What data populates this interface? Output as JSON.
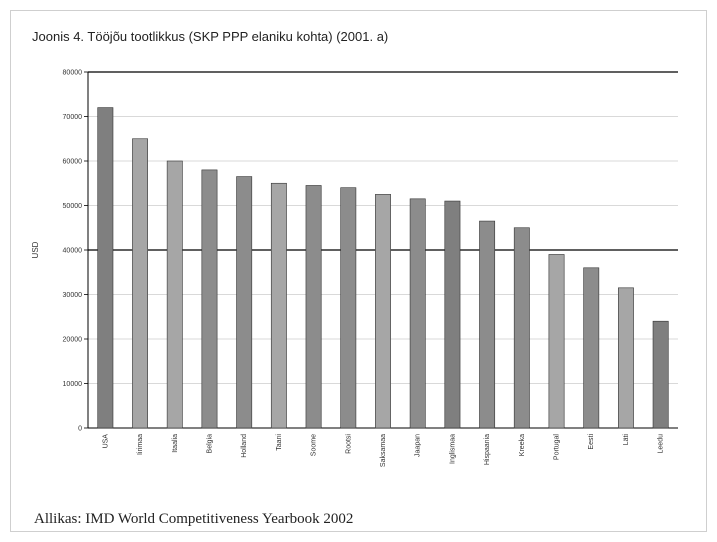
{
  "chart_data": {
    "type": "bar",
    "title": "Joonis 4. Tööjõu tootlikkus (SKP PPP elaniku kohta) (2001. a)",
    "ylabel": "USD",
    "xlabel": "",
    "ylim": [
      0,
      80000
    ],
    "yticks": [
      0,
      10000,
      20000,
      30000,
      40000,
      50000,
      60000,
      70000,
      80000
    ],
    "grid": true,
    "legend": "none",
    "categories": [
      "USA",
      "Iirimaa",
      "Itaalia",
      "Belgia",
      "Holland",
      "Taani",
      "Soome",
      "Rootsi",
      "Saksamaa",
      "Jaapan",
      "Inglismaa",
      "Hispaania",
      "Kreeka",
      "Portugal",
      "Eesti",
      "Läti",
      "Leedu"
    ],
    "values": [
      72000,
      65000,
      60000,
      58000,
      56500,
      55000,
      54500,
      54000,
      52500,
      51500,
      51000,
      46500,
      45000,
      39000,
      36000,
      31500,
      24000
    ],
    "bar_colors": [
      "#7f7f7f",
      "#a6a6a6",
      "#a6a6a6",
      "#8c8c8c",
      "#8c8c8c",
      "#a6a6a6",
      "#8c8c8c",
      "#8c8c8c",
      "#a6a6a6",
      "#8c8c8c",
      "#7f7f7f",
      "#8c8c8c",
      "#8c8c8c",
      "#a6a6a6",
      "#8c8c8c",
      "#a6a6a6",
      "#7f7f7f"
    ]
  },
  "source_note": "Allikas: IMD World Competitiveness Yearbook 2002"
}
